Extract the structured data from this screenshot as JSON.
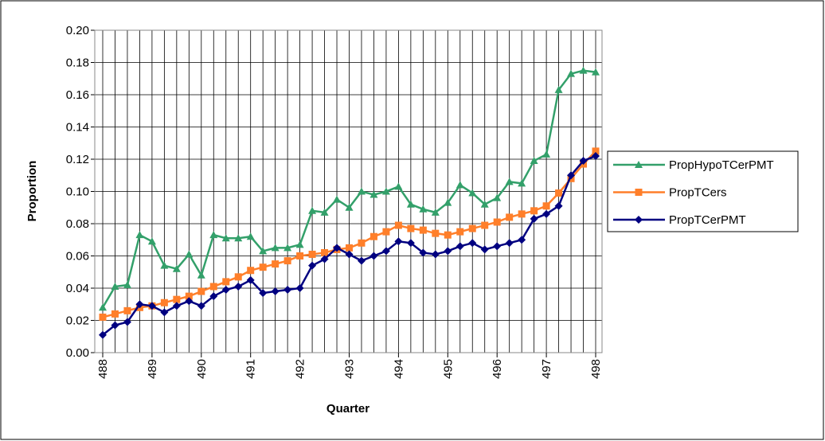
{
  "chart_data": {
    "type": "line",
    "x_label": "Quarter",
    "y_label": "Proportion",
    "x": [
      488,
      488.25,
      488.5,
      488.75,
      489,
      489.25,
      489.5,
      489.75,
      490,
      490.25,
      490.5,
      490.75,
      491,
      491.25,
      491.5,
      491.75,
      492,
      492.25,
      492.5,
      492.75,
      493,
      493.25,
      493.5,
      493.75,
      494,
      494.25,
      494.5,
      494.75,
      495,
      495.25,
      495.5,
      495.75,
      496,
      496.25,
      496.5,
      496.75,
      497,
      497.25,
      497.5,
      497.75,
      498
    ],
    "xlim": [
      488,
      498
    ],
    "xticks": [
      488,
      489,
      490,
      491,
      492,
      493,
      494,
      495,
      496,
      497,
      498
    ],
    "ylim": [
      0,
      0.2
    ],
    "yticks": [
      {
        "value": 0,
        "label": "0.00"
      },
      {
        "value": 0.02,
        "label": "0.02"
      },
      {
        "value": 0.04,
        "label": "0.04"
      },
      {
        "value": 0.06,
        "label": "0.06"
      },
      {
        "value": 0.08,
        "label": "0.08"
      },
      {
        "value": 0.1,
        "label": "0.10"
      },
      {
        "value": 0.12,
        "label": "0.12"
      },
      {
        "value": 0.14,
        "label": "0.14"
      },
      {
        "value": 0.16,
        "label": "0.16"
      },
      {
        "value": 0.18,
        "label": "0.18"
      },
      {
        "value": 0.2,
        "label": "0.20"
      }
    ],
    "grid": true,
    "legend": "right",
    "series": [
      {
        "name": "PropHypoTCerPMT",
        "color": "#33a06a",
        "marker": "triangle",
        "values": [
          0.028,
          0.041,
          0.042,
          0.073,
          0.069,
          0.054,
          0.052,
          0.061,
          0.048,
          0.073,
          0.071,
          0.071,
          0.072,
          0.063,
          0.065,
          0.065,
          0.067,
          0.088,
          0.087,
          0.095,
          0.09,
          0.1,
          0.098,
          0.1,
          0.103,
          0.092,
          0.089,
          0.087,
          0.093,
          0.104,
          0.099,
          0.092,
          0.096,
          0.106,
          0.105,
          0.119,
          0.123,
          0.163,
          0.173,
          0.175,
          0.174
        ]
      },
      {
        "name": "PropTCers",
        "color": "#ff7f2a",
        "marker": "square",
        "values": [
          0.022,
          0.024,
          0.026,
          0.028,
          0.029,
          0.031,
          0.033,
          0.035,
          0.038,
          0.041,
          0.044,
          0.047,
          0.051,
          0.053,
          0.055,
          0.057,
          0.06,
          0.061,
          0.062,
          0.064,
          0.065,
          0.068,
          0.072,
          0.075,
          0.079,
          0.077,
          0.076,
          0.074,
          0.073,
          0.075,
          0.077,
          0.079,
          0.081,
          0.084,
          0.086,
          0.088,
          0.091,
          0.099,
          0.108,
          0.117,
          0.125
        ]
      },
      {
        "name": "PropTCerPMT",
        "color": "#000080",
        "marker": "diamond",
        "values": [
          0.011,
          0.017,
          0.019,
          0.03,
          0.029,
          0.025,
          0.029,
          0.032,
          0.029,
          0.035,
          0.039,
          0.041,
          0.045,
          0.037,
          0.038,
          0.039,
          0.04,
          0.054,
          0.058,
          0.065,
          0.061,
          0.057,
          0.06,
          0.063,
          0.069,
          0.068,
          0.062,
          0.061,
          0.063,
          0.066,
          0.068,
          0.064,
          0.066,
          0.068,
          0.07,
          0.083,
          0.086,
          0.091,
          0.11,
          0.119,
          0.122
        ]
      }
    ]
  }
}
